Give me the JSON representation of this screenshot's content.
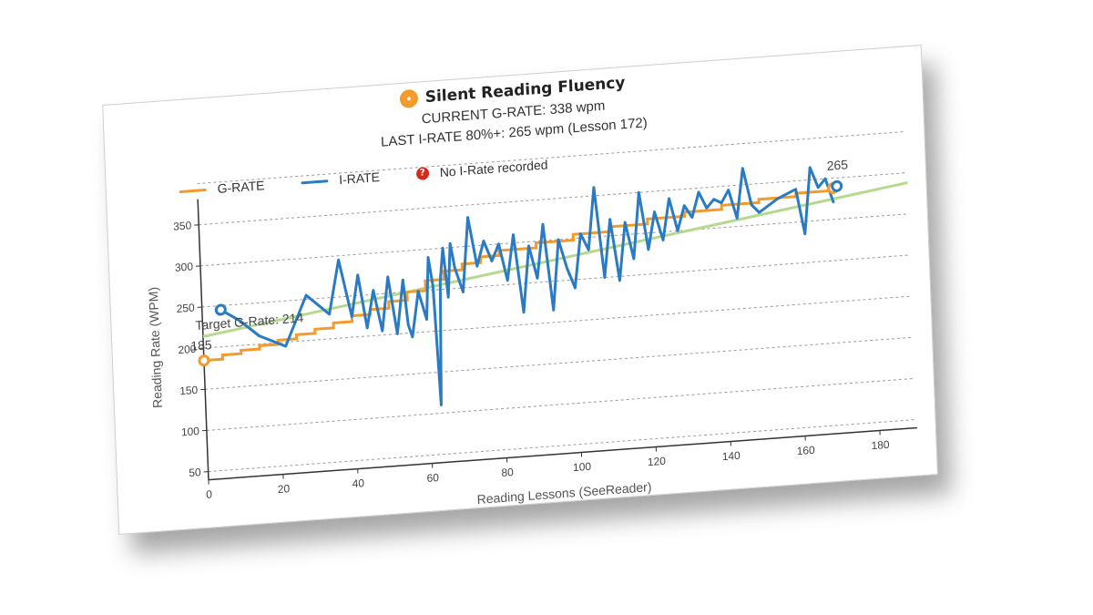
{
  "header": {
    "title": "Silent Reading Fluency",
    "current_grate": "CURRENT G-RATE: 338 wpm",
    "last_irate": "LAST I-RATE 80%+: 265 wpm (Lesson 172)"
  },
  "legend": {
    "grate_label": "G-RATE",
    "irate_label": "I-RATE",
    "no_irate_label": "No I-Rate recorded"
  },
  "colors": {
    "grate": "#f39a2a",
    "irate": "#2a7bc4",
    "target": "#b5d98f",
    "no_irate": "#d22b1e"
  },
  "chart_data": {
    "type": "line",
    "xlabel": "Reading Lessons (SeeReader)",
    "ylabel": "Reading Rate (WPM)",
    "xlim": [
      0,
      190
    ],
    "ylim": [
      40,
      370
    ],
    "xticks": [
      0,
      20,
      40,
      60,
      80,
      100,
      120,
      140,
      160,
      180
    ],
    "yticks": [
      50,
      100,
      150,
      200,
      250,
      300,
      350
    ],
    "grid": "horizontal dashed",
    "legend_position": "top-left",
    "series": [
      {
        "name": "G-RATE",
        "x": [
          0,
          5,
          10,
          15,
          20,
          25,
          30,
          35,
          40,
          45,
          50,
          55,
          60,
          65,
          70,
          75,
          80,
          90,
          100,
          110,
          120,
          130,
          140,
          150,
          160,
          170
        ],
        "y": [
          185,
          190,
          194,
          198,
          203,
          208,
          213,
          219,
          226,
          232,
          240,
          250,
          262,
          272,
          279,
          286,
          292,
          298,
          305,
          311,
          317,
          322,
          327,
          331,
          335,
          338
        ]
      },
      {
        "name": "I-RATE",
        "x": [
          5,
          10,
          15,
          22,
          28,
          34,
          37,
          40,
          42,
          44,
          46,
          48,
          50,
          52,
          54,
          55,
          56,
          58,
          60,
          61,
          62,
          63,
          64,
          65,
          66,
          67,
          68,
          70,
          72,
          74,
          76,
          78,
          80,
          82,
          84,
          86,
          88,
          90,
          92,
          94,
          96,
          98,
          100,
          102,
          104,
          106,
          108,
          110,
          112,
          114,
          116,
          118,
          120,
          122,
          124,
          126,
          128,
          130,
          132,
          134,
          136,
          138,
          140,
          142,
          144,
          146,
          148,
          150,
          155,
          160,
          162,
          164,
          166,
          168,
          170
        ],
        "y": [
          245,
          230,
          210,
          195,
          255,
          230,
          295,
          225,
          275,
          210,
          255,
          205,
          270,
          200,
          265,
          210,
          195,
          250,
          215,
          290,
          255,
          110,
          260,
          300,
          240,
          305,
          275,
          245,
          335,
          275,
          305,
          280,
          300,
          255,
          310,
          215,
          295,
          255,
          320,
          215,
          300,
          265,
          240,
          305,
          285,
          360,
          250,
          320,
          245,
          315,
          270,
          350,
          280,
          325,
          290,
          340,
          300,
          330,
          315,
          345,
          325,
          335,
          330,
          345,
          310,
          370,
          325,
          315,
          330,
          340,
          285,
          365,
          340,
          350,
          320
        ]
      },
      {
        "name": "Target G-Rate",
        "x": [
          0,
          190
        ],
        "y": [
          214,
          338
        ]
      }
    ],
    "annotations": {
      "target_label": "Target G-Rate: 214",
      "start_grate_label": "185",
      "last_irate_label": "265"
    }
  }
}
